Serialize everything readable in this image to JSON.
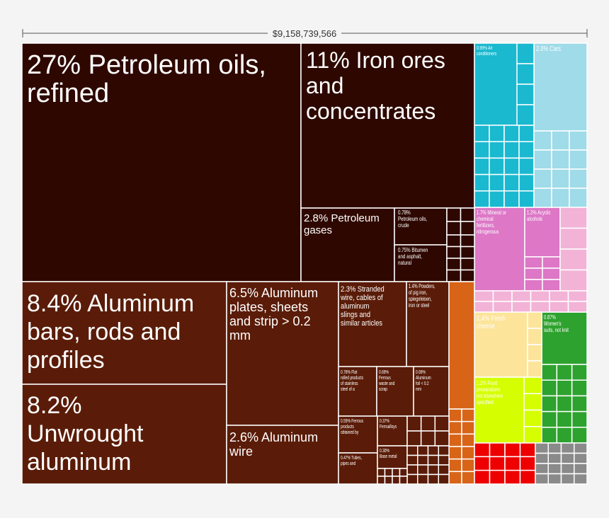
{
  "chart_data": {
    "type": "treemap",
    "title": "$9,158,739,566",
    "colors": {
      "metals_dark": "#2e0800",
      "metals": "#5a1c08",
      "orange": "#d86418",
      "cyan": "#1ab9d0",
      "light_cyan": "#9fdbe8",
      "magenta": "#dd77c6",
      "pink": "#f2b3d7",
      "cheese_yellow": "#fce49b",
      "lime": "#d5ff00",
      "green": "#2ea22e",
      "red": "#ee0000",
      "gray": "#8a8a8a",
      "tile_border": "#ffffff",
      "background": "#f4f4f4"
    },
    "items": [
      {
        "label": "27% Petroleum oils, refined",
        "share_pct": 27,
        "group": "metals_dark"
      },
      {
        "label": "11% Iron ores and concentrates",
        "share_pct": 11,
        "group": "metals_dark"
      },
      {
        "label": "2.8% Petroleum gases",
        "share_pct": 2.8,
        "group": "metals_dark"
      },
      {
        "label": "0.78% Petroleum oils, crude",
        "share_pct": 0.78,
        "group": "metals_dark"
      },
      {
        "label": "0.75% Bitumen and asphalt, natural",
        "share_pct": 0.75,
        "group": "metals_dark"
      },
      {
        "label": "8.4% Aluminum bars, rods and profiles",
        "share_pct": 8.4,
        "group": "metals"
      },
      {
        "label": "8.2% Unwrought aluminum",
        "share_pct": 8.2,
        "group": "metals"
      },
      {
        "label": "6.5% Aluminum plates, sheets and strip > 0.2 mm",
        "share_pct": 6.5,
        "group": "metals"
      },
      {
        "label": "2.6% Aluminum wire",
        "share_pct": 2.6,
        "group": "metals"
      },
      {
        "label": "2.3% Stranded wire, cables of aluminum slings and similar articles",
        "share_pct": 2.3,
        "group": "metals"
      },
      {
        "label": "1.4% Powders, of pig iron, spiegeleisen, iron or steel",
        "share_pct": 1.4,
        "group": "metals"
      },
      {
        "label": "0.76% Flat rolled products of stainless steel of a",
        "share_pct": 0.76,
        "group": "metals"
      },
      {
        "label": "0.69% Ferrous waste and scrap",
        "share_pct": 0.69,
        "group": "metals"
      },
      {
        "label": "0.69% Aluminum foil < 0.2 mm",
        "share_pct": 0.69,
        "group": "metals"
      },
      {
        "label": "0.55% Ferrous products obtained by",
        "share_pct": 0.55,
        "group": "metals"
      },
      {
        "label": "0.37% Ferroalloys",
        "share_pct": 0.37,
        "group": "metals"
      },
      {
        "label": "0.47% Tubes, pipes and",
        "share_pct": 0.47,
        "group": "metals"
      },
      {
        "label": "0.30% Base metal",
        "share_pct": 0.3,
        "group": "metals"
      },
      {
        "label": "0.99% Air conditioners",
        "share_pct": 0.99,
        "group": "cyan"
      },
      {
        "label": "2.0% Cars",
        "share_pct": 2.0,
        "group": "light_cyan"
      },
      {
        "label": "1.7% Mineral or chemical fertilizers, nitrogenous",
        "share_pct": 1.7,
        "group": "magenta"
      },
      {
        "label": "1.2% Acyclic alcohols",
        "share_pct": 1.2,
        "group": "magenta"
      },
      {
        "label": "1.4% Fresh cheese",
        "share_pct": 1.4,
        "group": "cheese_yellow"
      },
      {
        "label": "0.87% Women's suits, not knit",
        "share_pct": 0.87,
        "group": "green"
      },
      {
        "label": "1.2% Food preparations not elsewhere specified",
        "share_pct": 1.2,
        "group": "lime"
      }
    ]
  }
}
